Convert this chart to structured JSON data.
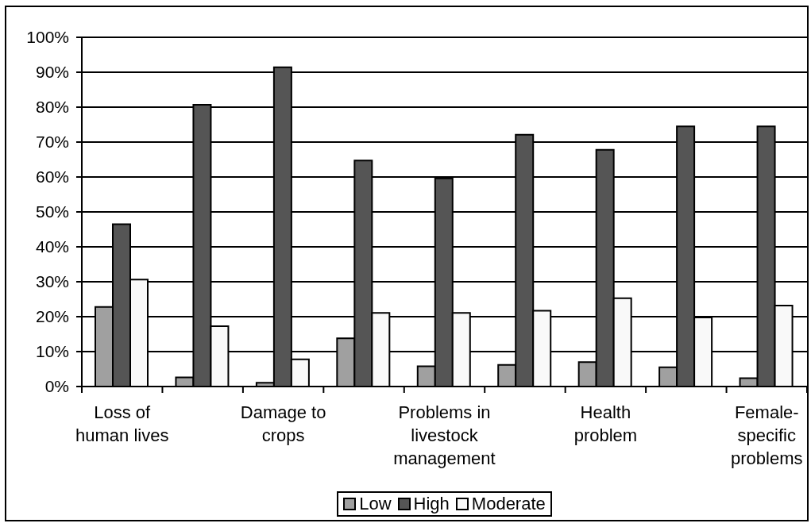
{
  "chart_data": {
    "type": "bar",
    "categories": [
      "Loss of human lives",
      null,
      "Damage to crops",
      null,
      "Problems in livestock management",
      null,
      "Health problem",
      null,
      "Female-specific problems"
    ],
    "series": [
      {
        "name": "Low",
        "color": "#a0a0a0",
        "values": [
          22.8,
          2.6,
          1.1,
          13.8,
          5.8,
          6.2,
          7.0,
          5.5,
          2.4
        ]
      },
      {
        "name": "High",
        "color": "#555555",
        "values": [
          46.5,
          80.7,
          91.4,
          64.7,
          59.6,
          72.1,
          67.8,
          74.5,
          74.5
        ]
      },
      {
        "name": "Moderate",
        "color": "#f9f9f9",
        "values": [
          30.6,
          17.3,
          7.8,
          21.1,
          21.1,
          21.7,
          25.3,
          19.8,
          23.2
        ]
      }
    ],
    "ylim": [
      0,
      100
    ],
    "yticks": [
      {
        "value": 0,
        "label": "0%"
      },
      {
        "value": 10,
        "label": "10%"
      },
      {
        "value": 20,
        "label": "20%"
      },
      {
        "value": 30,
        "label": "30%"
      },
      {
        "value": 40,
        "label": "40%"
      },
      {
        "value": 50,
        "label": "50%"
      },
      {
        "value": 60,
        "label": "60%"
      },
      {
        "value": 70,
        "label": "70%"
      },
      {
        "value": 80,
        "label": "80%"
      },
      {
        "value": 90,
        "label": "90%"
      },
      {
        "value": 100,
        "label": "100%"
      }
    ],
    "grid": "y",
    "legend": "bottom"
  }
}
